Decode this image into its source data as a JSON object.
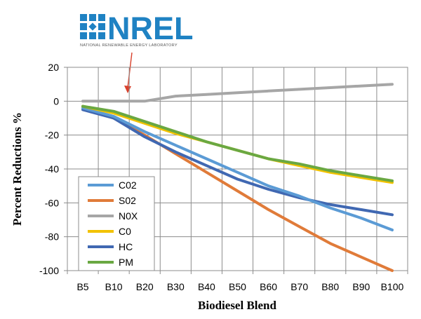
{
  "logo": {
    "wordmark": "NREL",
    "subtitle": "NATIONAL RENEWABLE ENERGY LABORATORY",
    "color": "#1f82c3"
  },
  "annotation": {
    "arrow_color": "#d9402b",
    "points_to": "B10"
  },
  "chart_data": {
    "type": "line",
    "title": "",
    "xlabel": "Biodiesel Blend",
    "ylabel": "Percent Reductions %",
    "categories": [
      "B5",
      "B10",
      "B20",
      "B30",
      "B40",
      "B50",
      "B60",
      "B70",
      "B80",
      "B90",
      "B100"
    ],
    "ylim": [
      -100,
      20
    ],
    "yticks": [
      20,
      0,
      -20,
      -40,
      -60,
      -80,
      -100
    ],
    "grid": true,
    "legend_position": "bottom-left",
    "series": [
      {
        "name": "C02",
        "color": "#5b9bd5",
        "values": [
          -4,
          -9,
          -18,
          -26,
          -34,
          -42,
          -50,
          -56,
          -63,
          -69,
          -76
        ]
      },
      {
        "name": "S02",
        "color": "#e07b39",
        "values": [
          -4,
          -10,
          -20,
          -31,
          -42,
          -53,
          -64,
          -74,
          -84,
          -92,
          -100
        ]
      },
      {
        "name": "N0X",
        "color": "#a6a6a6",
        "values": [
          0,
          0,
          0,
          3,
          4,
          5,
          6,
          7,
          8,
          9,
          10
        ]
      },
      {
        "name": "C0",
        "color": "#f2c200",
        "values": [
          -3,
          -7,
          -13,
          -19,
          -24,
          -29,
          -34,
          -38,
          -42,
          -45,
          -48
        ]
      },
      {
        "name": "HC",
        "color": "#4068b2",
        "values": [
          -5,
          -10,
          -21,
          -30,
          -38,
          -46,
          -52,
          -57,
          -61,
          -64,
          -67
        ]
      },
      {
        "name": "PM",
        "color": "#6aa842",
        "values": [
          -3,
          -6,
          -12,
          -18,
          -24,
          -29,
          -34,
          -37,
          -41,
          -44,
          -47
        ]
      }
    ]
  }
}
